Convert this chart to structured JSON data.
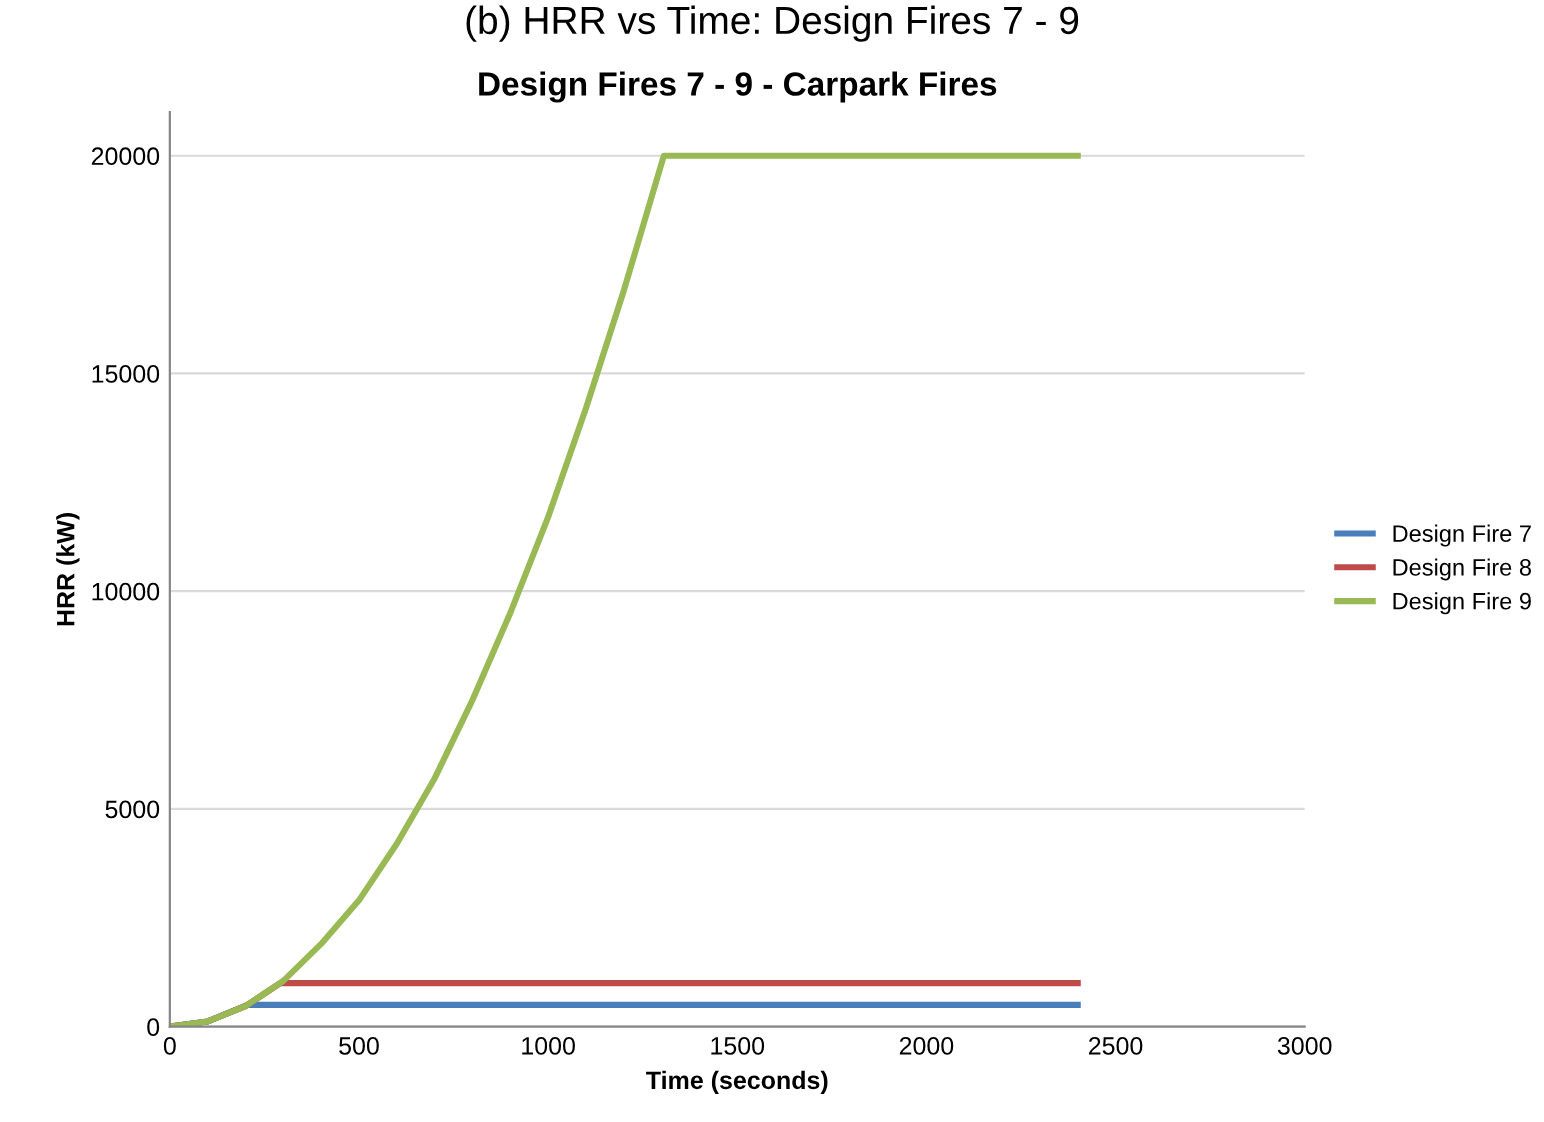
{
  "chart_data": {
    "type": "line",
    "title": "Design Fires 7 - 9 - Carpark Fires",
    "annotations": [
      "(b) HRR vs Time: Design Fires 7 - 9"
    ],
    "xlabel": "Time (seconds)",
    "ylabel": "HRR (kW)",
    "xlim": [
      0,
      3000
    ],
    "xticks": [
      0,
      500,
      1000,
      1500,
      2000,
      2500,
      3000
    ],
    "ylim": [
      0,
      21000
    ],
    "yticks": [
      0,
      5000,
      10000,
      15000,
      20000
    ],
    "grid": "y",
    "legend": "right",
    "marker": "none",
    "line_style": "solid",
    "series": [
      {
        "name": "Design Fire 7",
        "color": "#4a7ebb",
        "x": [
          0,
          100,
          206,
          2400
        ],
        "values": [
          0,
          120,
          500,
          500
        ]
      },
      {
        "name": "Design Fire 8",
        "color": "#be4b48",
        "x": [
          0,
          100,
          200,
          292,
          2400
        ],
        "values": [
          0,
          120,
          470,
          1000,
          1000
        ]
      },
      {
        "name": "Design Fire 9",
        "color": "#98b954",
        "x": [
          0,
          100,
          200,
          300,
          400,
          500,
          600,
          700,
          800,
          900,
          1000,
          1100,
          1200,
          1306,
          2400
        ],
        "values": [
          0,
          120,
          470,
          1050,
          1900,
          2900,
          4200,
          5700,
          7500,
          9500,
          11700,
          14200,
          16900,
          20000,
          20000
        ]
      }
    ]
  }
}
